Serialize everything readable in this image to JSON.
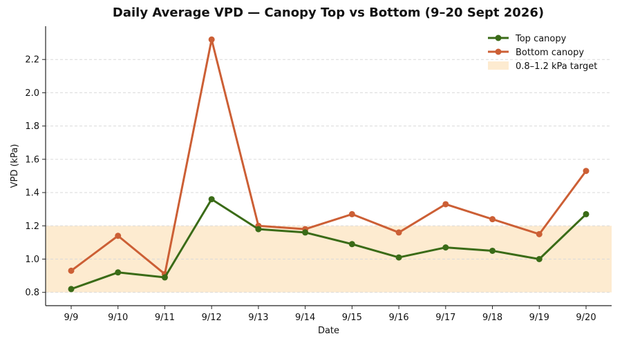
{
  "chart_data": {
    "type": "line",
    "title": "Daily Average VPD — Canopy Top vs Bottom (9–20 Sept 2026)",
    "xlabel": "Date",
    "ylabel": "VPD (kPa)",
    "categories": [
      "9/9",
      "9/10",
      "9/11",
      "9/12",
      "9/13",
      "9/14",
      "9/15",
      "9/16",
      "9/17",
      "9/18",
      "9/19",
      "9/20"
    ],
    "ylim": [
      0.72,
      2.4
    ],
    "yticks": [
      "0.8",
      "1.0",
      "1.2",
      "1.4",
      "1.6",
      "1.8",
      "2.0",
      "2.2"
    ],
    "grid": "horizontal dashed",
    "legend_position": "top-right",
    "series": [
      {
        "name": "Top canopy",
        "color": "#3a6b17",
        "values": [
          0.82,
          0.92,
          0.89,
          1.36,
          1.18,
          1.16,
          1.09,
          1.01,
          1.07,
          1.05,
          1.0,
          1.27
        ]
      },
      {
        "name": "Bottom canopy",
        "color": "#cc5f35",
        "values": [
          0.93,
          1.14,
          0.91,
          2.32,
          1.2,
          1.18,
          1.27,
          1.16,
          1.33,
          1.24,
          1.15,
          1.53
        ]
      }
    ],
    "target_band": {
      "name": "0.8–1.2 kPa target",
      "low": 0.8,
      "high": 1.2,
      "color": "#fdebd0"
    }
  }
}
